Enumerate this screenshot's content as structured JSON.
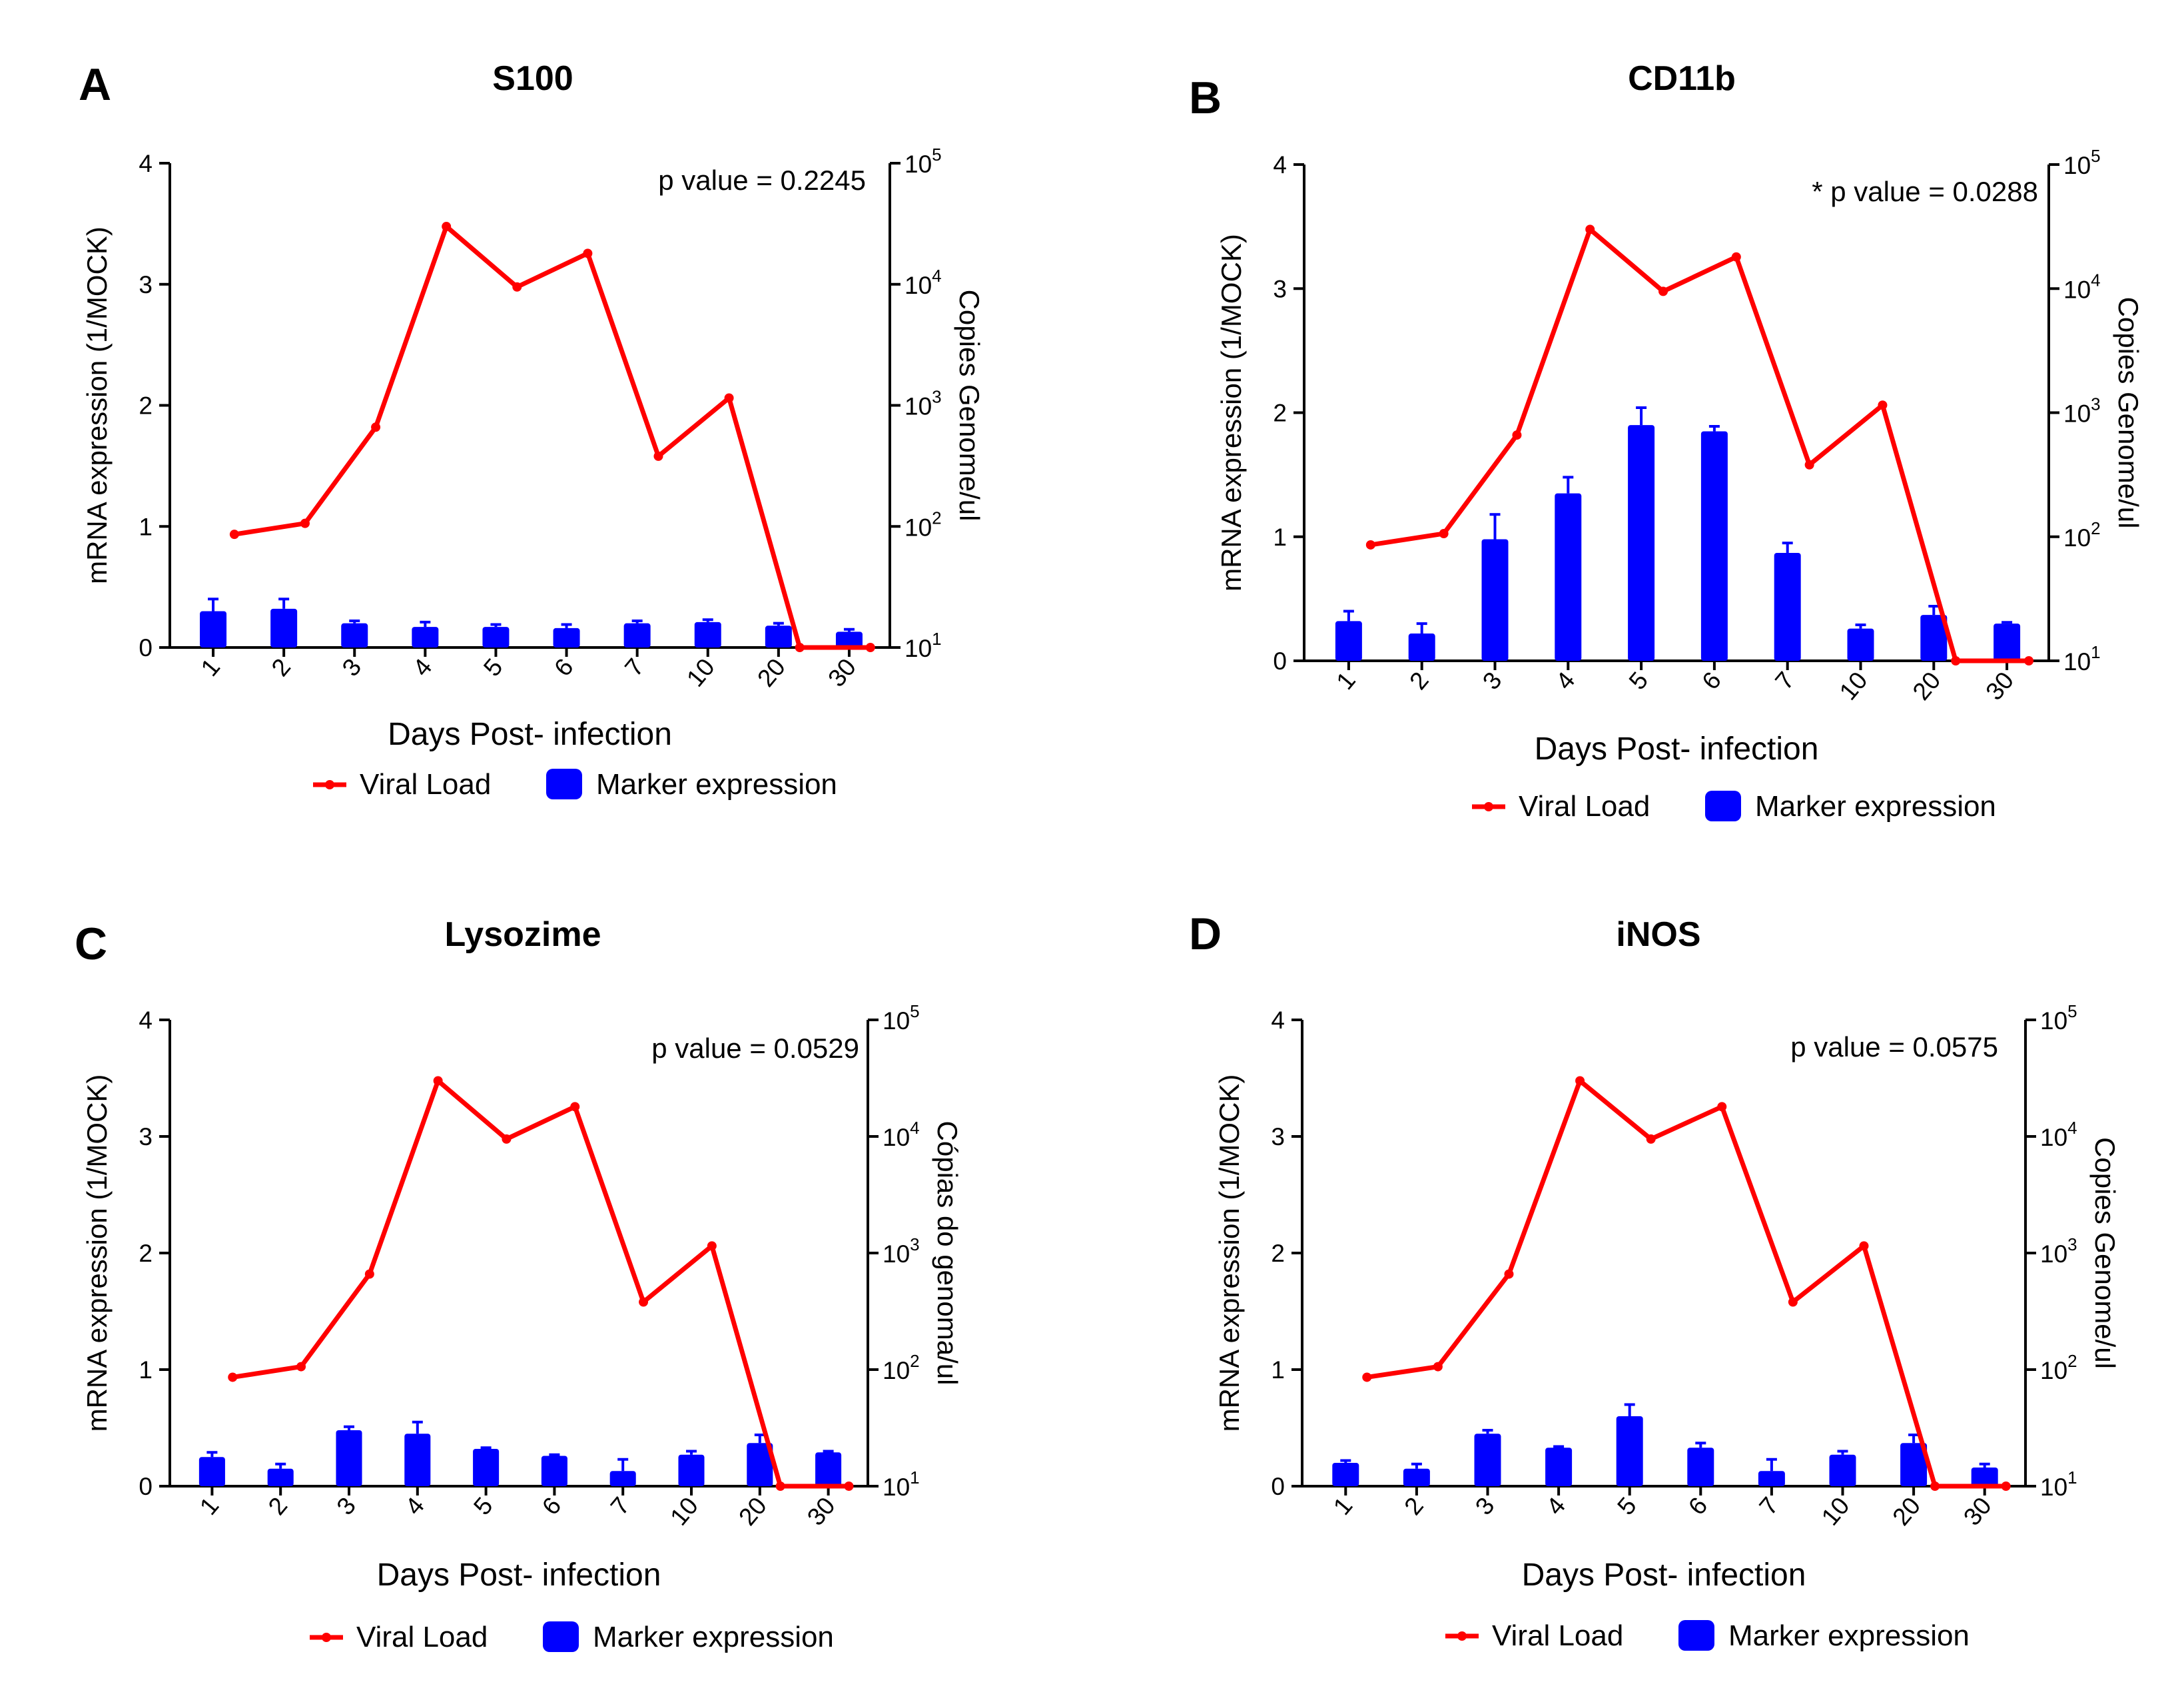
{
  "chart_data": [
    {
      "panel": "A",
      "type": "bar+line",
      "title": "S100",
      "xlabel": "Days Post- infection",
      "ylabel": "mRNA expression (1/MOCK)",
      "y2label": "Copies Genome/ul",
      "p_value": "p value = 0.2245",
      "categories": [
        "1",
        "2",
        "3",
        "4",
        "5",
        "6",
        "7",
        "10",
        "20",
        "30"
      ],
      "ylim": [
        0,
        4
      ],
      "yticks": [
        "0",
        "1",
        "2",
        "3",
        "4"
      ],
      "y2ticks": [
        "10",
        "10",
        "10",
        "10",
        "10"
      ],
      "y2exponents": [
        "1",
        "2",
        "3",
        "4",
        "5"
      ],
      "y2scale": "log",
      "y2lim_exponent": [
        1,
        5
      ],
      "series": [
        {
          "name": "Marker expression",
          "kind": "bar",
          "color": "#0000ff",
          "values": [
            0.3,
            0.32,
            0.2,
            0.17,
            0.17,
            0.16,
            0.2,
            0.21,
            0.18,
            0.13
          ],
          "errors": [
            0.1,
            0.08,
            0.02,
            0.04,
            0.02,
            0.03,
            0.02,
            0.02,
            0.02,
            0.02
          ]
        },
        {
          "name": "Viral Load",
          "kind": "line",
          "axis": "right",
          "color": "#ff0000",
          "values": [
            86,
            106,
            660,
            30000,
            9500,
            18000,
            380,
            1150,
            10,
            10
          ]
        }
      ],
      "legend": [
        "Viral Load",
        "Marker expression"
      ]
    },
    {
      "panel": "B",
      "type": "bar+line",
      "title": "CD11b",
      "xlabel": "Days Post- infection",
      "ylabel": "mRNA expression (1/MOCK)",
      "y2label": "Copies Genome/ul",
      "p_value": "* p value = 0.0288",
      "categories": [
        "1",
        "2",
        "3",
        "4",
        "5",
        "6",
        "7",
        "10",
        "20",
        "30"
      ],
      "ylim": [
        0,
        4
      ],
      "yticks": [
        "0",
        "1",
        "2",
        "3",
        "4"
      ],
      "y2ticks": [
        "10",
        "10",
        "10",
        "10",
        "10"
      ],
      "y2exponents": [
        "1",
        "2",
        "3",
        "4",
        "5"
      ],
      "y2scale": "log",
      "y2lim_exponent": [
        1,
        5
      ],
      "series": [
        {
          "name": "Marker expression",
          "kind": "bar",
          "color": "#0000ff",
          "values": [
            0.32,
            0.22,
            0.98,
            1.35,
            1.9,
            1.85,
            0.87,
            0.26,
            0.37,
            0.3
          ],
          "errors": [
            0.08,
            0.08,
            0.2,
            0.13,
            0.14,
            0.04,
            0.08,
            0.03,
            0.07,
            0.01
          ]
        },
        {
          "name": "Viral Load",
          "kind": "line",
          "axis": "right",
          "color": "#ff0000",
          "values": [
            86,
            106,
            660,
            30000,
            9500,
            18000,
            380,
            1150,
            10,
            10
          ]
        }
      ],
      "legend": [
        "Viral Load",
        "Marker expression"
      ]
    },
    {
      "panel": "C",
      "type": "bar+line",
      "title": "Lysozime",
      "xlabel": "Days Post- infection",
      "ylabel": "mRNA expression (1/MOCK)",
      "y2label": "Cópias do genoma/ul",
      "p_value": "p value = 0.0529",
      "categories": [
        "1",
        "2",
        "3",
        "4",
        "5",
        "6",
        "7",
        "10",
        "20",
        "30"
      ],
      "ylim": [
        0,
        4
      ],
      "yticks": [
        "0",
        "1",
        "2",
        "3",
        "4"
      ],
      "y2ticks": [
        "10",
        "10",
        "10",
        "10",
        "10"
      ],
      "y2exponents": [
        "1",
        "2",
        "3",
        "4",
        "5"
      ],
      "y2scale": "log",
      "y2lim_exponent": [
        1,
        5
      ],
      "series": [
        {
          "name": "Marker expression",
          "kind": "bar",
          "color": "#0000ff",
          "values": [
            0.25,
            0.15,
            0.48,
            0.45,
            0.32,
            0.26,
            0.13,
            0.27,
            0.37,
            0.29
          ],
          "errors": [
            0.04,
            0.04,
            0.03,
            0.1,
            0.01,
            0.01,
            0.1,
            0.03,
            0.07,
            0.01
          ]
        },
        {
          "name": "Viral Load",
          "kind": "line",
          "axis": "right",
          "color": "#ff0000",
          "values": [
            86,
            106,
            660,
            30000,
            9500,
            18000,
            380,
            1150,
            10,
            10
          ]
        }
      ],
      "legend": [
        "Viral Load",
        "Marker expression"
      ]
    },
    {
      "panel": "D",
      "type": "bar+line",
      "title": "iNOS",
      "xlabel": "Days Post- infection",
      "ylabel": "mRNA expression (1/MOCK)",
      "y2label": "Copies Genome/ul",
      "p_value": "p value = 0.0575",
      "categories": [
        "1",
        "2",
        "3",
        "4",
        "5",
        "6",
        "7",
        "10",
        "20",
        "30"
      ],
      "ylim": [
        0,
        4
      ],
      "yticks": [
        "0",
        "1",
        "2",
        "3",
        "4"
      ],
      "y2ticks": [
        "10",
        "10",
        "10",
        "10",
        "10"
      ],
      "y2exponents": [
        "1",
        "2",
        "3",
        "4",
        "5"
      ],
      "y2scale": "log",
      "y2lim_exponent": [
        1,
        5
      ],
      "series": [
        {
          "name": "Marker expression",
          "kind": "bar",
          "color": "#0000ff",
          "values": [
            0.2,
            0.15,
            0.45,
            0.33,
            0.6,
            0.33,
            0.13,
            0.27,
            0.37,
            0.16
          ],
          "errors": [
            0.02,
            0.04,
            0.03,
            0.01,
            0.1,
            0.04,
            0.1,
            0.03,
            0.07,
            0.03
          ]
        },
        {
          "name": "Viral Load",
          "kind": "line",
          "axis": "right",
          "color": "#ff0000",
          "values": [
            86,
            106,
            660,
            30000,
            9500,
            18000,
            380,
            1150,
            10,
            10
          ]
        }
      ],
      "legend": [
        "Viral Load",
        "Marker expression"
      ]
    }
  ]
}
